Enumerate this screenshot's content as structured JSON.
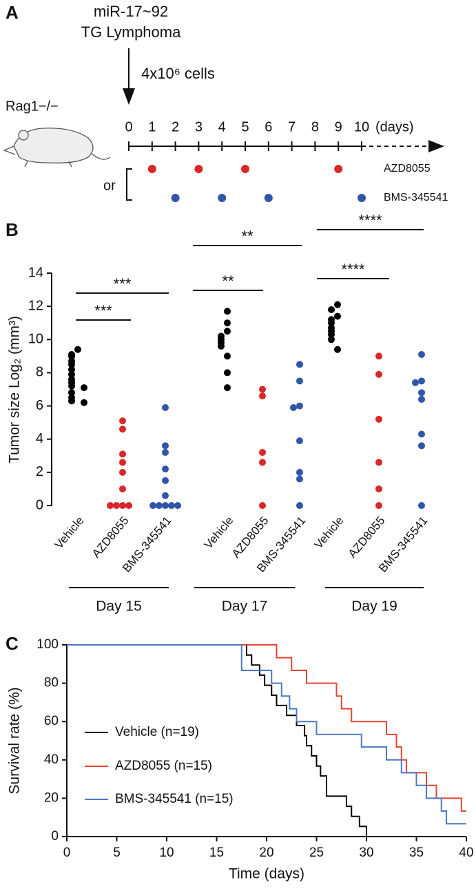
{
  "chart_data": [
    {
      "type": "timeline",
      "panel_label": "A",
      "title": "miR-17~92",
      "subtitle": "TG Lymphoma",
      "injection": "4x10⁶ cells",
      "host": "Rag1−/−",
      "xlim": [
        0,
        10
      ],
      "xticks": [
        0,
        1,
        2,
        3,
        4,
        5,
        6,
        7,
        8,
        9,
        10
      ],
      "xlabel": "(days)",
      "connector": "or",
      "series": [
        {
          "name": "AZD8055",
          "color": "#d9272a",
          "x": [
            1,
            3,
            5,
            9
          ]
        },
        {
          "name": "BMS-345541",
          "color": "#2f56a8",
          "x": [
            2,
            4,
            6,
            10
          ]
        }
      ]
    },
    {
      "type": "dot",
      "panel_label": "B",
      "ylabel": "Tumor size Log₂ (mm³)",
      "ylim": [
        0,
        14
      ],
      "yticks": [
        0,
        2,
        4,
        6,
        8,
        10,
        12,
        14
      ],
      "groups": [
        {
          "label": "Day 15",
          "annotations": [
            "***",
            "***"
          ],
          "series": [
            {
              "name": "Vehicle",
              "color": "#000000",
              "values": [
                9.4,
                9.1,
                9.0,
                8.7,
                8.5,
                8.2,
                7.9,
                7.6,
                7.4,
                7.2,
                7.1,
                6.8,
                6.5,
                6.3,
                6.2
              ]
            },
            {
              "name": "AZD8055",
              "color": "#d9272a",
              "values": [
                5.1,
                4.6,
                3.1,
                2.6,
                2.0,
                1.0,
                0,
                0,
                0,
                0
              ]
            },
            {
              "name": "BMS-345541",
              "color": "#2f56a8",
              "values": [
                5.9,
                3.6,
                3.2,
                2.2,
                1.5,
                0.6,
                0,
                0,
                0,
                0,
                0
              ]
            }
          ]
        },
        {
          "label": "Day 17",
          "annotations": [
            "**",
            "**"
          ],
          "series": [
            {
              "name": "Vehicle",
              "color": "#000000",
              "values": [
                11.7,
                11.0,
                10.5,
                10.2,
                10.0,
                9.8,
                9.6,
                9.0,
                8.0,
                7.1
              ]
            },
            {
              "name": "AZD8055",
              "color": "#d9272a",
              "values": [
                7.0,
                6.6,
                3.2,
                2.6,
                0
              ]
            },
            {
              "name": "BMS-345541",
              "color": "#2f56a8",
              "values": [
                8.5,
                7.5,
                6.0,
                5.9,
                3.9,
                2.0,
                1.6,
                0
              ]
            }
          ]
        },
        {
          "label": "Day 19",
          "annotations": [
            "****",
            "****"
          ],
          "series": [
            {
              "name": "Vehicle",
              "color": "#000000",
              "values": [
                12.1,
                11.8,
                11.4,
                11.2,
                11.0,
                10.7,
                10.5,
                10.3,
                10.0,
                9.4
              ]
            },
            {
              "name": "AZD8055",
              "color": "#d9272a",
              "values": [
                9.0,
                7.9,
                5.2,
                2.6,
                1.0,
                0
              ]
            },
            {
              "name": "BMS-345541",
              "color": "#2f56a8",
              "values": [
                9.1,
                7.5,
                7.4,
                6.8,
                6.4,
                4.3,
                3.6,
                0
              ]
            }
          ]
        }
      ]
    },
    {
      "type": "step",
      "panel_label": "C",
      "xlabel": "Time (days)",
      "ylabel": "Survival rate (%)",
      "xlim": [
        0,
        40
      ],
      "xticks": [
        0,
        5,
        10,
        15,
        20,
        25,
        30,
        35,
        40
      ],
      "ylim": [
        0,
        100
      ],
      "yticks": [
        0,
        20,
        40,
        60,
        80,
        100
      ],
      "series": [
        {
          "name": "Vehicle (n=19)",
          "color": "#000000",
          "x": [
            0,
            18.0,
            18.5,
            19.3,
            19.8,
            20.5,
            21.0,
            22.0,
            23.0,
            23.8,
            24.0,
            24.5,
            25.0,
            25.4,
            26.0,
            28.0,
            28.5,
            29.3,
            30.0
          ],
          "values": [
            100,
            94.7,
            89.5,
            84.2,
            78.9,
            73.7,
            68.4,
            63.2,
            57.9,
            52.6,
            47.4,
            42.1,
            36.8,
            31.6,
            21.1,
            15.8,
            10.5,
            5.3,
            0
          ]
        },
        {
          "name": "AZD8055 (n=15)",
          "color": "#e8432e",
          "x": [
            0,
            21.0,
            22.5,
            24.0,
            27.0,
            27.5,
            28.5,
            32.0,
            33.0,
            33.5,
            34.0,
            36.0,
            37.0,
            39.5,
            40
          ],
          "values": [
            100,
            93.3,
            86.7,
            80,
            73.3,
            66.7,
            60,
            53.3,
            46.7,
            40,
            33.3,
            26.7,
            20,
            13.3,
            13.3
          ]
        },
        {
          "name": "BMS-345541 (n=15)",
          "color": "#4a78c8",
          "x": [
            0,
            17.5,
            20.5,
            21.5,
            22.3,
            23.0,
            25.0,
            29.5,
            32.0,
            33.5,
            35.0,
            36.0,
            37.5,
            38.0,
            40
          ],
          "values": [
            100,
            86.7,
            80,
            73.3,
            66.7,
            60,
            53.3,
            46.7,
            40,
            33.3,
            26.7,
            20,
            13.3,
            6.7,
            6.7
          ]
        }
      ]
    }
  ]
}
